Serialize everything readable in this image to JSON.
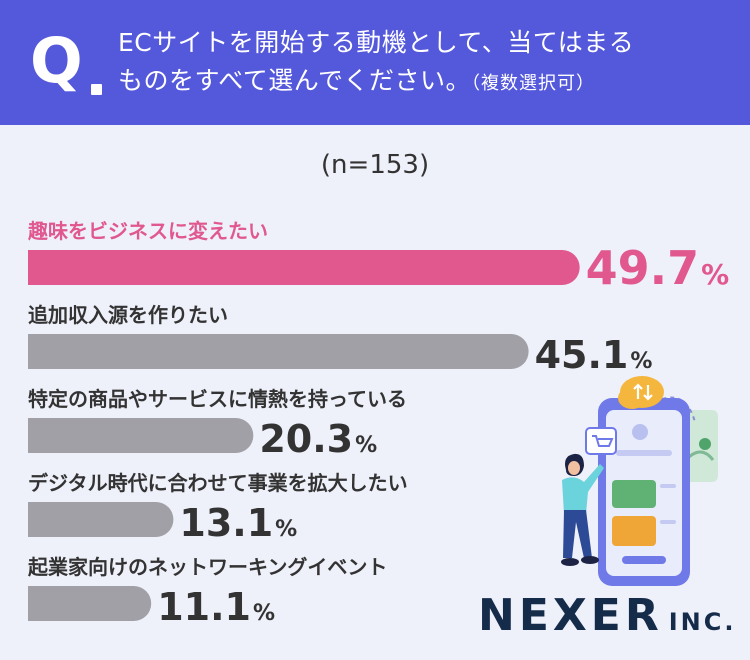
{
  "question": {
    "mark": "Q",
    "line1": "ECサイトを開始する動機として、当てはまる",
    "line2": "ものをすべて選んでください。",
    "note": "（複数選択可）"
  },
  "sample_label": "(n=153)",
  "colors": {
    "header": "#5459dc",
    "highlight": "#e0588e",
    "bar": "#a0a0a6",
    "value": "#333333"
  },
  "chart_data": {
    "type": "bar",
    "orientation": "horizontal",
    "unit": "%",
    "categories": [
      "趣味をビジネスに変えたい",
      "追加収入源を作りたい",
      "特定の商品やサービスに情熱を持っている",
      "デジタル時代に合わせて事業を拡大したい",
      "起業家向けのネットワーキングイベント"
    ],
    "values": [
      49.7,
      45.1,
      20.3,
      13.1,
      11.1
    ],
    "value_labels": [
      "49.7",
      "45.1",
      "20.3",
      "13.1",
      "11.1"
    ],
    "highlight_index": 0
  },
  "logo": {
    "main": "NEXER",
    "suffix": "INC."
  }
}
